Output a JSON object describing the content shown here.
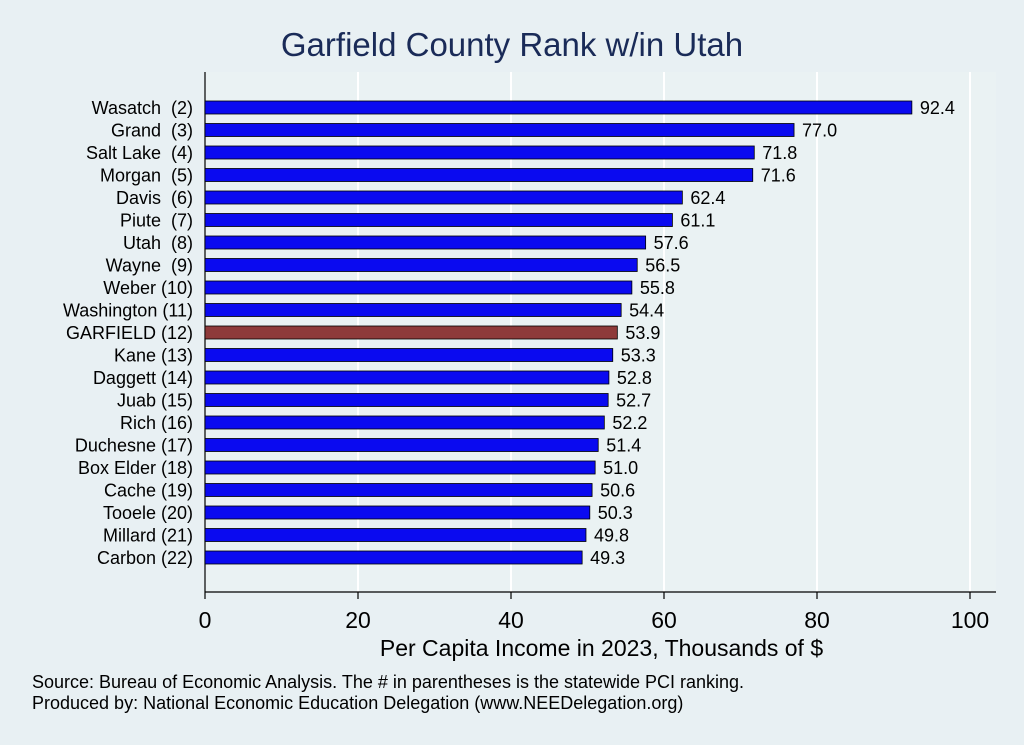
{
  "chart_data": {
    "type": "bar",
    "orientation": "horizontal",
    "title": "Garfield County Rank w/in Utah",
    "xlabel": "Per Capita Income in 2023, Thousands of $",
    "ylabel": "",
    "xlim": [
      0,
      100
    ],
    "xticks": [
      "0",
      "20",
      "40",
      "60",
      "80",
      "100"
    ],
    "categories": [
      "Wasatch  (2)",
      "Grand  (3)",
      "Salt Lake  (4)",
      "Morgan  (5)",
      "Davis  (6)",
      "Piute  (7)",
      "Utah  (8)",
      "Wayne  (9)",
      "Weber (10)",
      "Washington (11)",
      "GARFIELD (12)",
      "Kane (13)",
      "Daggett (14)",
      "Juab (15)",
      "Rich (16)",
      "Duchesne (17)",
      "Box Elder (18)",
      "Cache (19)",
      "Tooele (20)",
      "Millard (21)",
      "Carbon (22)"
    ],
    "values": [
      92.4,
      77.0,
      71.8,
      71.6,
      62.4,
      61.1,
      57.6,
      56.5,
      55.8,
      54.4,
      53.9,
      53.3,
      52.8,
      52.7,
      52.2,
      51.4,
      51.0,
      50.6,
      50.3,
      49.8,
      49.3
    ],
    "value_labels": [
      "92.4",
      "77.0",
      "71.8",
      "71.6",
      "62.4",
      "61.1",
      "57.6",
      "56.5",
      "55.8",
      "54.4",
      "53.9",
      "53.3",
      "52.8",
      "52.7",
      "52.2",
      "51.4",
      "51.0",
      "50.6",
      "50.3",
      "49.8",
      "49.3"
    ],
    "highlight_category": "GARFIELD (12)",
    "colors": {
      "bar": "#0a0af0",
      "highlight": "#8e3a3a",
      "grid": "#ffffff"
    },
    "grid": true
  },
  "footnotes": {
    "source": "Source: Bureau of Economic Analysis. The # in parentheses is the statewide PCI ranking.",
    "producer": "Produced by: National Economic Education Delegation (www.NEEDelegation.org)"
  }
}
